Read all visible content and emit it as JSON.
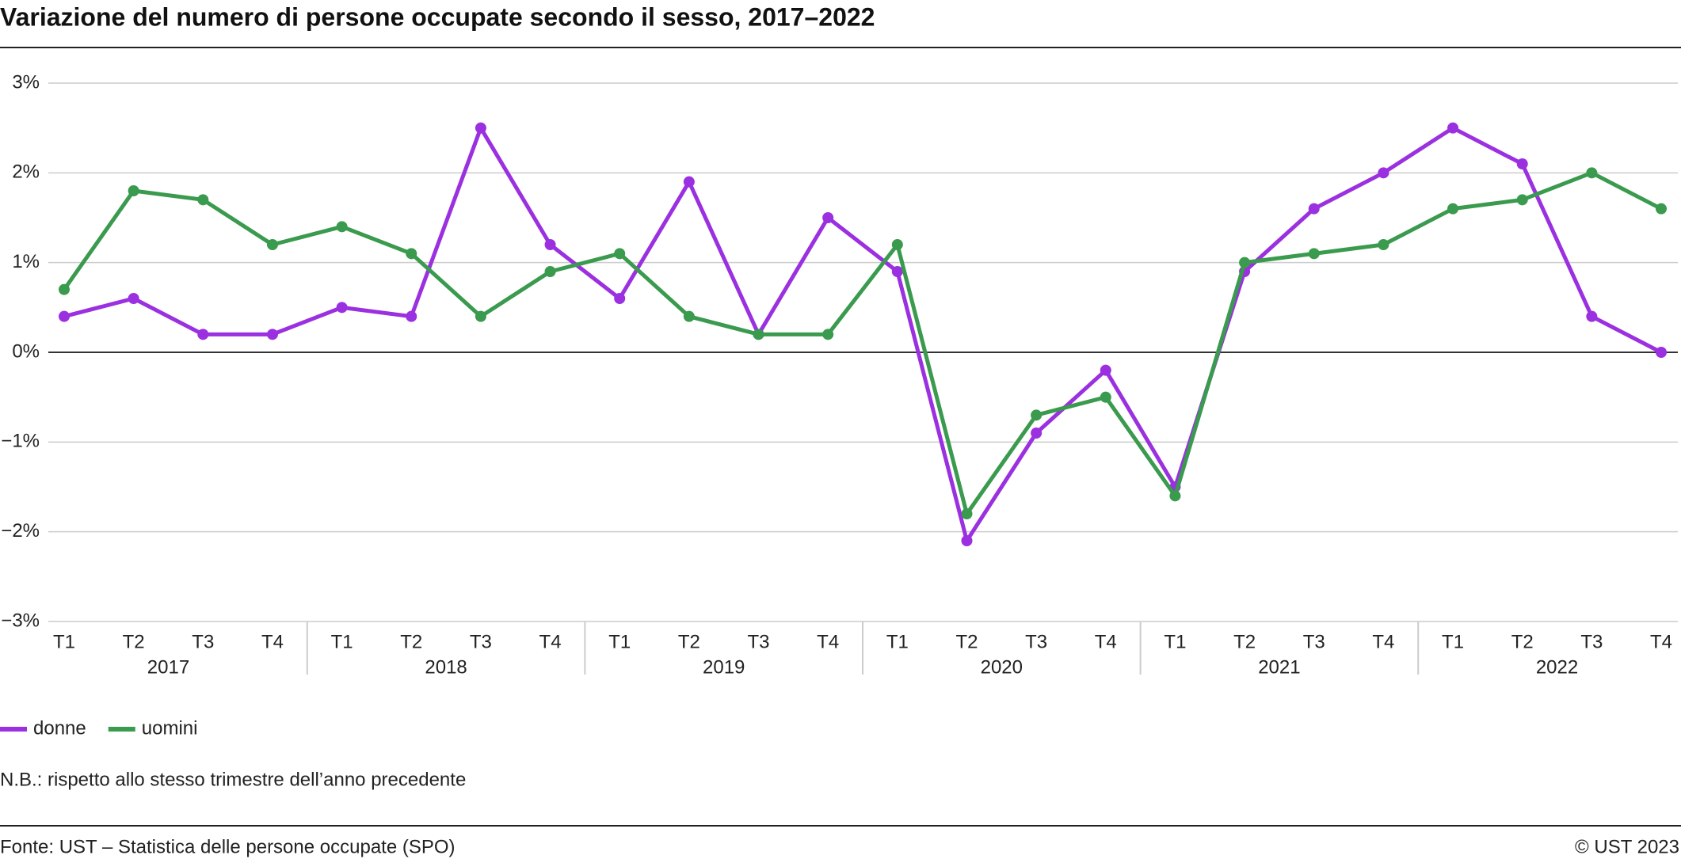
{
  "chart_data": {
    "type": "line",
    "title": "Variazione del numero di persone occupate secondo il sesso, 2017–2022",
    "categories": [
      "T1",
      "T2",
      "T3",
      "T4",
      "T1",
      "T2",
      "T3",
      "T4",
      "T1",
      "T2",
      "T3",
      "T4",
      "T1",
      "T2",
      "T3",
      "T4",
      "T1",
      "T2",
      "T3",
      "T4",
      "T1",
      "T2",
      "T3",
      "T4"
    ],
    "groups": [
      "2017",
      "2018",
      "2019",
      "2020",
      "2021",
      "2022"
    ],
    "series": [
      {
        "name": "donne",
        "color": "#9b30e0",
        "values": [
          0.4,
          0.6,
          0.2,
          0.2,
          0.5,
          0.4,
          2.5,
          1.2,
          0.6,
          1.9,
          0.2,
          1.5,
          0.9,
          -2.1,
          -0.9,
          -0.2,
          -1.5,
          0.9,
          1.6,
          2.0,
          2.5,
          2.1,
          0.4,
          0.0
        ]
      },
      {
        "name": "uomini",
        "color": "#3a9a4e",
        "values": [
          0.7,
          1.8,
          1.7,
          1.2,
          1.4,
          1.1,
          0.4,
          0.9,
          1.1,
          0.4,
          0.2,
          0.2,
          1.2,
          -1.8,
          -0.7,
          -0.5,
          -1.6,
          1.0,
          1.1,
          1.2,
          1.6,
          1.7,
          2.0,
          1.6
        ]
      }
    ],
    "ylim": [
      -3,
      3
    ],
    "yticks": [
      {
        "value": -3,
        "label": "−3%"
      },
      {
        "value": -2,
        "label": "−2%"
      },
      {
        "value": -1,
        "label": "−1%"
      },
      {
        "value": 0,
        "label": "0%"
      },
      {
        "value": 1,
        "label": "1%"
      },
      {
        "value": 2,
        "label": "2%"
      },
      {
        "value": 3,
        "label": "3%"
      }
    ],
    "grid": true,
    "legend": "bottom-left",
    "note": "N.B.: rispetto allo stesso trimestre dell’anno precedente",
    "source": "Fonte: UST – Statistica delle persone occupate (SPO)",
    "copyright": "© UST 2023"
  }
}
